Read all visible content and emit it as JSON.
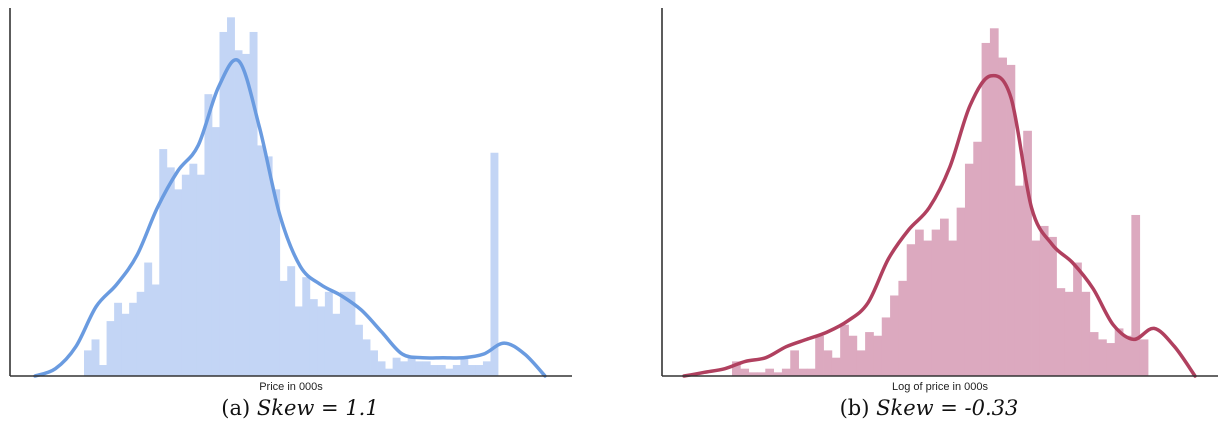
{
  "chart_data": [
    {
      "type": "bar",
      "caption_prefix": "(a)",
      "caption_italic": "Skew = 1.1",
      "xlabel": "Price in 000s",
      "ylabel": "",
      "bar_color": "#c3d5f5",
      "kde_color": "#6a9be0",
      "ylim": [
        0,
        1.0
      ],
      "series": [
        {
          "values": [
            0.07,
            0.1,
            0.03,
            0.15,
            0.2,
            0.17,
            0.2,
            0.23,
            0.31,
            0.25,
            0.62,
            0.57,
            0.51,
            0.55,
            0.58,
            0.55,
            0.77,
            0.68,
            0.94,
            0.98,
            0.89,
            0.88,
            0.94,
            0.63,
            0.6,
            0.51,
            0.26,
            0.3,
            0.19,
            0.27,
            0.21,
            0.19,
            0.23,
            0.17,
            0.23,
            0.23,
            0.14,
            0.1,
            0.07,
            0.04,
            0.02,
            0.05,
            0.04,
            0.05,
            0.04,
            0.04,
            0.03,
            0.03,
            0.02,
            0.03,
            0.05,
            0.03,
            0.03,
            0.04,
            0.61
          ]
        },
        {
          "name": "kde",
          "values": [
            0.0,
            0.02,
            0.08,
            0.19,
            0.25,
            0.33,
            0.46,
            0.56,
            0.63,
            0.79,
            0.86,
            0.68,
            0.44,
            0.3,
            0.25,
            0.22,
            0.18,
            0.12,
            0.06,
            0.05,
            0.05,
            0.05,
            0.06,
            0.09,
            0.06,
            0.0
          ]
        }
      ]
    },
    {
      "type": "bar",
      "caption_prefix": "(b)",
      "caption_italic": "Skew = -0.33",
      "xlabel": "Log of price in 000s",
      "ylabel": "",
      "bar_color": "#dca9bf",
      "kde_color": "#b0405f",
      "ylim": [
        0,
        1.0
      ],
      "series": [
        {
          "values": [
            0.04,
            0.02,
            0.01,
            0.01,
            0.02,
            0.01,
            0.02,
            0.07,
            0.02,
            0.02,
            0.11,
            0.07,
            0.05,
            0.14,
            0.11,
            0.07,
            0.12,
            0.11,
            0.16,
            0.22,
            0.26,
            0.36,
            0.4,
            0.37,
            0.4,
            0.43,
            0.37,
            0.46,
            0.58,
            0.64,
            0.91,
            0.95,
            0.87,
            0.85,
            0.52,
            0.67,
            0.37,
            0.41,
            0.38,
            0.24,
            0.23,
            0.31,
            0.23,
            0.12,
            0.1,
            0.09,
            0.13,
            0.11,
            0.44,
            0.1
          ]
        },
        {
          "name": "kde",
          "values": [
            0.0,
            0.01,
            0.02,
            0.04,
            0.05,
            0.08,
            0.1,
            0.12,
            0.15,
            0.2,
            0.32,
            0.4,
            0.46,
            0.57,
            0.74,
            0.82,
            0.76,
            0.46,
            0.36,
            0.31,
            0.24,
            0.14,
            0.1,
            0.13,
            0.08,
            0.0
          ]
        }
      ]
    }
  ]
}
